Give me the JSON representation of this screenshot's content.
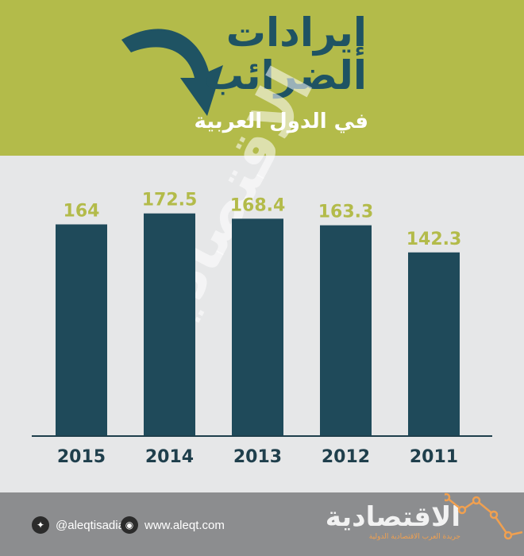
{
  "header": {
    "title_line1": "إيرادات",
    "title_line2": "الضرائب",
    "subtitle": "في الدول العربية",
    "bg_color": "#b3bb4a",
    "title_color": "#1f5363"
  },
  "watermark": {
    "text": "الاقتصادية"
  },
  "chart_data": {
    "type": "bar",
    "categories": [
      "2015",
      "2014",
      "2013",
      "2012",
      "2011"
    ],
    "values": [
      164,
      172.5,
      168.4,
      163.3,
      142.3
    ],
    "value_labels": [
      "164",
      "172.5",
      "168.4",
      "163.3",
      "142.3"
    ],
    "ylim": [
      0,
      200
    ],
    "grid": false,
    "legend": "none",
    "bar_color": "#1f4a5a",
    "label_color": "#b3bb4a"
  },
  "footer": {
    "twitter_icon": "twitter-icon",
    "twitter_handle": "@aleqtisadiah",
    "web_icon": "globe-icon",
    "website": "www.aleqt.com",
    "logo_name": "الاقتصادية",
    "logo_tagline": "جريدة العرب الاقتصادية الدولية",
    "bg_color": "#8c8d8f",
    "accent_color": "#f0a050"
  }
}
